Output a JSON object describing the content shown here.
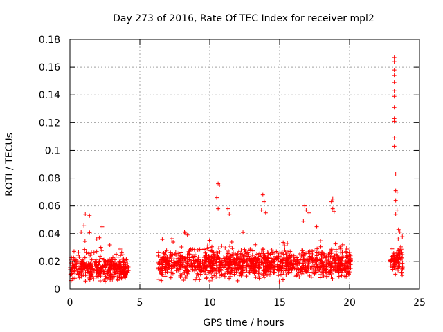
{
  "chart_data": {
    "type": "scatter",
    "title": "Day 273 of 2016, Rate Of TEC Index for receiver mpl2",
    "xlabel": "GPS time / hours",
    "ylabel": "ROTI / TECUs",
    "xlim": [
      0,
      25
    ],
    "ylim": [
      0,
      0.18
    ],
    "xticks": [
      0,
      5,
      10,
      15,
      20,
      25
    ],
    "yticks": [
      0,
      0.02,
      0.04,
      0.06,
      0.08,
      0.1,
      0.12,
      0.14,
      0.16,
      0.18
    ],
    "xtick_labels": [
      "0",
      "5",
      "10",
      "15",
      "20",
      "25"
    ],
    "ytick_labels": [
      "0",
      "0.02",
      "0.04",
      "0.06",
      "0.08",
      "0.1",
      "0.12",
      "0.14",
      "0.16",
      "0.18"
    ],
    "grid": true,
    "marker": "+",
    "color": "#ff0000",
    "series": [
      {
        "name": "ROTI",
        "segments": [
          {
            "start": 0.0,
            "end": 4.2,
            "base": 0.015,
            "spread": 0.012
          },
          {
            "start": 6.3,
            "end": 20.1,
            "base": 0.018,
            "spread": 0.014
          },
          {
            "start": 22.9,
            "end": 23.8,
            "base": 0.02,
            "spread": 0.012
          }
        ],
        "peaks": [
          {
            "x": 1.1,
            "y": 0.054
          },
          {
            "x": 1.4,
            "y": 0.053
          },
          {
            "x": 1.0,
            "y": 0.046
          },
          {
            "x": 0.8,
            "y": 0.041
          },
          {
            "x": 2.3,
            "y": 0.045
          },
          {
            "x": 2.1,
            "y": 0.037
          },
          {
            "x": 8.4,
            "y": 0.039
          },
          {
            "x": 10.6,
            "y": 0.076
          },
          {
            "x": 10.7,
            "y": 0.075
          },
          {
            "x": 10.5,
            "y": 0.066
          },
          {
            "x": 10.6,
            "y": 0.058
          },
          {
            "x": 11.3,
            "y": 0.058
          },
          {
            "x": 11.4,
            "y": 0.054
          },
          {
            "x": 13.8,
            "y": 0.068
          },
          {
            "x": 13.9,
            "y": 0.063
          },
          {
            "x": 13.7,
            "y": 0.057
          },
          {
            "x": 14.0,
            "y": 0.055
          },
          {
            "x": 16.8,
            "y": 0.06
          },
          {
            "x": 16.9,
            "y": 0.057
          },
          {
            "x": 17.1,
            "y": 0.055
          },
          {
            "x": 16.7,
            "y": 0.049
          },
          {
            "x": 18.8,
            "y": 0.065
          },
          {
            "x": 18.7,
            "y": 0.063
          },
          {
            "x": 18.8,
            "y": 0.058
          },
          {
            "x": 18.9,
            "y": 0.056
          },
          {
            "x": 23.2,
            "y": 0.167
          },
          {
            "x": 23.2,
            "y": 0.164
          },
          {
            "x": 23.2,
            "y": 0.158
          },
          {
            "x": 23.2,
            "y": 0.154
          },
          {
            "x": 23.2,
            "y": 0.149
          },
          {
            "x": 23.2,
            "y": 0.143
          },
          {
            "x": 23.2,
            "y": 0.139
          },
          {
            "x": 23.2,
            "y": 0.131
          },
          {
            "x": 23.2,
            "y": 0.123
          },
          {
            "x": 23.2,
            "y": 0.121
          },
          {
            "x": 23.2,
            "y": 0.109
          },
          {
            "x": 23.2,
            "y": 0.103
          },
          {
            "x": 23.3,
            "y": 0.083
          },
          {
            "x": 23.3,
            "y": 0.071
          },
          {
            "x": 23.4,
            "y": 0.07
          },
          {
            "x": 23.3,
            "y": 0.064
          },
          {
            "x": 23.4,
            "y": 0.057
          },
          {
            "x": 23.3,
            "y": 0.054
          },
          {
            "x": 23.5,
            "y": 0.043
          },
          {
            "x": 23.6,
            "y": 0.041
          }
        ]
      }
    ]
  }
}
